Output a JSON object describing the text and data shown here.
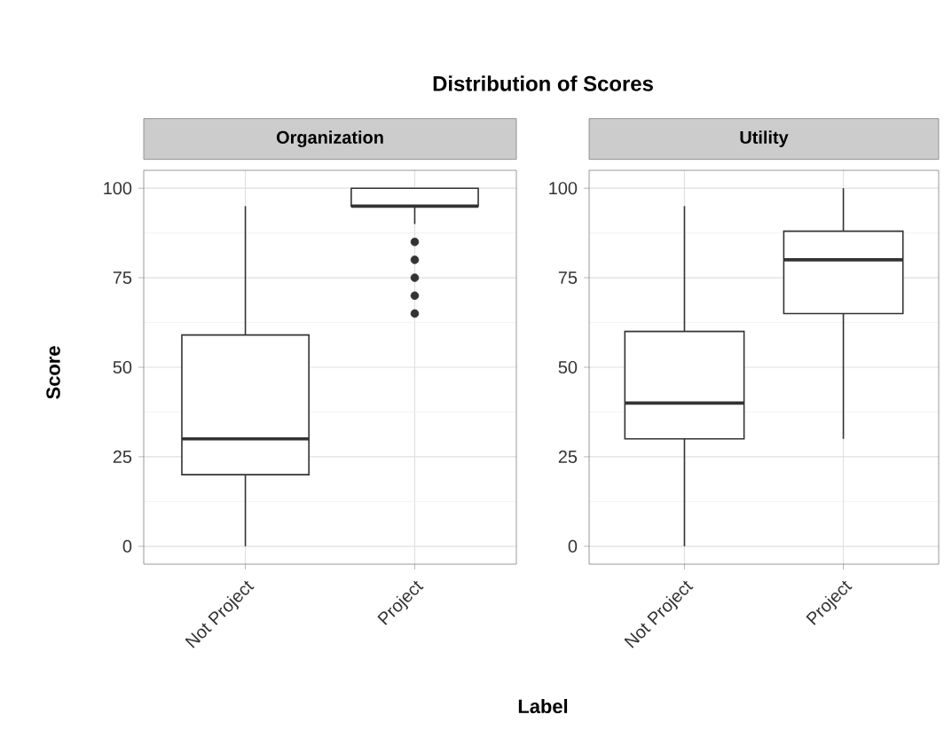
{
  "chart_data": [
    {
      "type": "box",
      "title": "Distribution of Scores",
      "subtitle": "Organization",
      "xlabel": "Label",
      "ylabel": "Score",
      "categories": [
        "Not Project",
        "Project"
      ],
      "boxes": [
        {
          "low": 0,
          "q1": 20,
          "median": 30,
          "q3": 59,
          "high": 95
        },
        {
          "low": 90,
          "q1": 95,
          "median": 95,
          "q3": 100,
          "high": 100,
          "outliers": [
            85,
            80,
            75,
            70,
            65
          ]
        }
      ],
      "ylim": [
        -5,
        105
      ],
      "yticks": [
        0,
        25,
        50,
        75,
        100
      ],
      "grid": true
    },
    {
      "type": "box",
      "subtitle": "Utility",
      "categories": [
        "Not Project",
        "Project"
      ],
      "boxes": [
        {
          "low": 0,
          "q1": 30,
          "median": 40,
          "q3": 60,
          "high": 95
        },
        {
          "low": 30,
          "q1": 65,
          "median": 80,
          "q3": 88,
          "high": 100
        }
      ],
      "ylim": [
        -5,
        105
      ],
      "yticks": [
        0,
        25,
        50,
        75,
        100
      ],
      "grid": true
    }
  ]
}
